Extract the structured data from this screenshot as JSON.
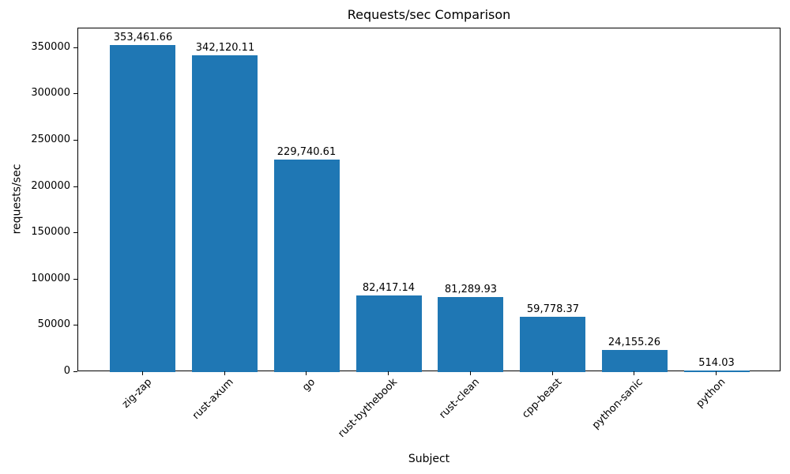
{
  "chart_data": {
    "type": "bar",
    "title": "Requests/sec Comparison",
    "xlabel": "Subject",
    "ylabel": "requests/sec",
    "categories": [
      "zig-zap",
      "rust-axum",
      "go",
      "rust-bythebook",
      "rust-clean",
      "cpp-beast",
      "python-sanic",
      "python"
    ],
    "values": [
      353461.66,
      342120.11,
      229740.61,
      82417.14,
      81289.93,
      59778.37,
      24155.26,
      514.03
    ],
    "value_labels": [
      "353,461.66",
      "342,120.11",
      "229,740.61",
      "82,417.14",
      "81,289.93",
      "59,778.37",
      "24,155.26",
      "514.03"
    ],
    "yticks": [
      0,
      50000,
      100000,
      150000,
      200000,
      250000,
      300000,
      350000
    ],
    "ytick_labels": [
      "0",
      "50000",
      "100000",
      "150000",
      "200000",
      "250000",
      "300000",
      "350000"
    ],
    "ylim": [
      0,
      371135
    ],
    "xtick_rotation": 45,
    "bar_color": "#1f77b4",
    "grid": false,
    "legend": null,
    "background_color": "#ffffff",
    "text_color": "#000000"
  }
}
